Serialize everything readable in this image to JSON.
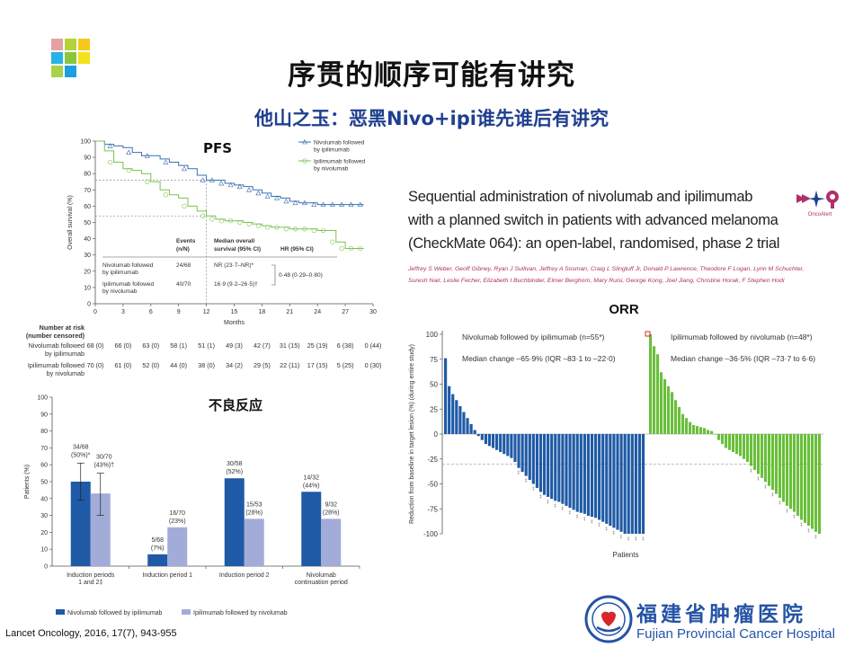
{
  "slide": {
    "title": "序贯的顺序可能有讲究",
    "subtitle": "他山之玉：恶黑Nivo+ipi谁先谁后有讲究",
    "citation": "Lancet Oncology, 2016, 17(7), 943-955",
    "logo_colors": [
      "#e8a1a1",
      "#b5d336",
      "#f7c81b",
      "#27b3e8",
      "#8bc540",
      "#f4e11a",
      "#a8d24a",
      "#1aa0e0"
    ]
  },
  "paper": {
    "title_lines": [
      "Sequential administration of nivolumab and ipilimumab",
      "with a planned switch in patients with advanced melanoma",
      "(CheckMate 064): an open-label, randomised, phase 2 trial"
    ],
    "authors_lines": [
      "Jeffrey S Weber, Geoff Gibney, Ryan J Sullivan, Jeffrey A Sosman, Craig L Slingluff Jr, Donald P Lawrence, Theodore F Logan, Lynn M Schuchter,",
      "Suresh Nair, Leslie Fecher, Elizabeth I Buchbinder, Elmer Berghorn, Mary Ruisi, George Kong, Joel Jiang, Christine Horak, F Stephen Hodi"
    ],
    "badge_text": "OncoAlert"
  },
  "hospital": {
    "name_cn": "福建省肿瘤医院",
    "name_en": "Fujian Provincial Cancer Hospital",
    "color": "#2553a6"
  },
  "colors": {
    "nivo_first": "#3a6fb5",
    "ipi_first": "#7cc152",
    "orr_nivo": "#1f5aa6",
    "orr_ipi": "#6abf3a",
    "ae_nivo": "#1f5aa6",
    "ae_ipi": "#a3acd9"
  },
  "pfs": {
    "label": "PFS",
    "ylabel": "Overall survival (%)",
    "xlabel": "Months",
    "x_ticks": [
      0,
      3,
      6,
      9,
      12,
      15,
      18,
      21,
      24,
      27,
      30
    ],
    "y_ticks": [
      0,
      10,
      20,
      30,
      40,
      50,
      60,
      70,
      80,
      90,
      100
    ],
    "legend": [
      "Nivolumab followed by ipilimumab",
      "Ipilimumab followed by nivolumab"
    ],
    "events_header": "Events (n/N)",
    "median_header": "Median overall survival (95% CI)",
    "hr_header": "HR (95% CI)",
    "rows": [
      {
        "arm": "Nivolumab followed by ipilimumab",
        "events": "24/68",
        "median": "NR (23·7–NR)*"
      },
      {
        "arm": "Ipilimumab followed by nivolumab",
        "events": "40/70",
        "median": "16·9 (9·2–26·5)†"
      }
    ],
    "hr": "0·48 (0·29–0·80)"
  },
  "risk_table": {
    "header": "Number at risk (number censored)",
    "rows": [
      {
        "arm": "Nivolumab followed by ipilimumab",
        "values": [
          "68 (0)",
          "66 (0)",
          "63 (0)",
          "58 (1)",
          "51 (1)",
          "49 (3)",
          "42 (7)",
          "31 (15)",
          "25 (19)",
          "6 (38)",
          "0 (44)"
        ]
      },
      {
        "arm": "Ipilimumab followed by nivolumab",
        "values": [
          "70 (0)",
          "61 (0)",
          "52 (0)",
          "44 (0)",
          "38 (0)",
          "34 (2)",
          "29 (5)",
          "22 (11)",
          "17 (15)",
          "5 (25)",
          "0 (30)"
        ]
      }
    ]
  },
  "chart_data": [
    {
      "type": "line",
      "xlabel": "Months",
      "ylabel": "Overall survival (%)",
      "xlim": [
        0,
        30
      ],
      "ylim": [
        0,
        100
      ],
      "series": [
        {
          "name": "Nivolumab followed by ipilimumab",
          "x": [
            0,
            1,
            2,
            3,
            4,
            5,
            6,
            7,
            8,
            9,
            10,
            11,
            12,
            13,
            14,
            15,
            16,
            17,
            18,
            19,
            20,
            21,
            22,
            23,
            24,
            25,
            26,
            27,
            28,
            29
          ],
          "y": [
            100,
            98,
            97,
            96,
            93,
            91,
            91,
            89,
            87,
            85,
            83,
            79,
            76,
            76,
            74,
            73,
            72,
            70,
            68,
            66,
            65,
            63,
            62,
            62,
            61,
            61,
            61,
            61,
            61,
            61
          ]
        },
        {
          "name": "Ipilimumab followed by nivolumab",
          "x": [
            0,
            1,
            2,
            3,
            4,
            5,
            6,
            7,
            8,
            9,
            10,
            11,
            12,
            13,
            14,
            15,
            16,
            17,
            18,
            19,
            20,
            21,
            22,
            23,
            24,
            25,
            26,
            27,
            28,
            29
          ],
          "y": [
            100,
            94,
            87,
            83,
            82,
            80,
            75,
            70,
            67,
            65,
            60,
            57,
            54,
            52,
            51,
            51,
            50,
            49,
            48,
            47,
            47,
            46,
            46,
            46,
            45,
            45,
            38,
            34,
            34,
            34
          ]
        }
      ]
    },
    {
      "type": "bar",
      "title": "ORR",
      "ylabel": "Reduction from baseline in target lesion (%) (during entire study)",
      "xlabel": "Patients",
      "ylim": [
        -100,
        100
      ],
      "y_ticks": [
        100,
        75,
        50,
        25,
        0,
        -25,
        -50,
        -75,
        -100
      ],
      "reference_line": -30,
      "series": [
        {
          "name": "Nivolumab followed by ipilimumab (n=55*)",
          "median_text": "Median change –65·9% (IQR –83·1 to –22·0)",
          "values": [
            76,
            48,
            40,
            34,
            28,
            22,
            16,
            10,
            4,
            -2,
            -6,
            -10,
            -12,
            -14,
            -16,
            -18,
            -20,
            -22,
            -24,
            -28,
            -34,
            -38,
            -42,
            -46,
            -50,
            -54,
            -58,
            -61,
            -63,
            -65,
            -67,
            -68,
            -70,
            -72,
            -74,
            -76,
            -78,
            -79,
            -80,
            -82,
            -83,
            -84,
            -86,
            -88,
            -90,
            -92,
            -94,
            -96,
            -98,
            -100,
            -100,
            -100,
            -100,
            -100,
            -100
          ]
        },
        {
          "name": "Ipilimumab followed by nivolumab (n=48*)",
          "median_text": "Median change –36·5% (IQR –73·7 to 6·6)",
          "values": [
            100,
            88,
            80,
            62,
            55,
            48,
            42,
            34,
            27,
            20,
            16,
            12,
            9,
            8,
            7,
            6,
            4,
            3,
            0,
            -6,
            -10,
            -14,
            -16,
            -18,
            -20,
            -22,
            -25,
            -28,
            -32,
            -36,
            -40,
            -44,
            -48,
            -52,
            -56,
            -60,
            -64,
            -68,
            -72,
            -75,
            -78,
            -82,
            -86,
            -89,
            -92,
            -95,
            -98,
            -100
          ]
        }
      ]
    },
    {
      "type": "bar",
      "title": "不良反应",
      "ylabel": "Patients (%)",
      "ylim": [
        0,
        100
      ],
      "y_ticks": [
        0,
        10,
        20,
        30,
        40,
        50,
        60,
        70,
        80,
        90,
        100
      ],
      "categories": [
        "Induction periods 1 and 2‡",
        "Induction period 1",
        "Induction period 2",
        "Nivolumab continuation period"
      ],
      "legend": [
        "Nivolumab followed by ipilimumab",
        "Ipilimumab followed by nivolumab"
      ],
      "series": [
        {
          "name": "Nivolumab followed by ipilimumab",
          "values": [
            50,
            7,
            52,
            44
          ],
          "labels": [
            "34/68 (50%)*",
            "5/68 (7%)",
            "30/58 (52%)",
            "14/32 (44%)"
          ]
        },
        {
          "name": "Ipilimumab followed by nivolumab",
          "values": [
            43,
            23,
            28,
            28
          ],
          "labels": [
            "30/70 (43%)†",
            "16/70 (23%)",
            "15/53 (28%)",
            "9/32 (28%)"
          ]
        }
      ],
      "error_bars": [
        [
          39,
          61
        ],
        [
          30,
          55
        ]
      ]
    }
  ]
}
